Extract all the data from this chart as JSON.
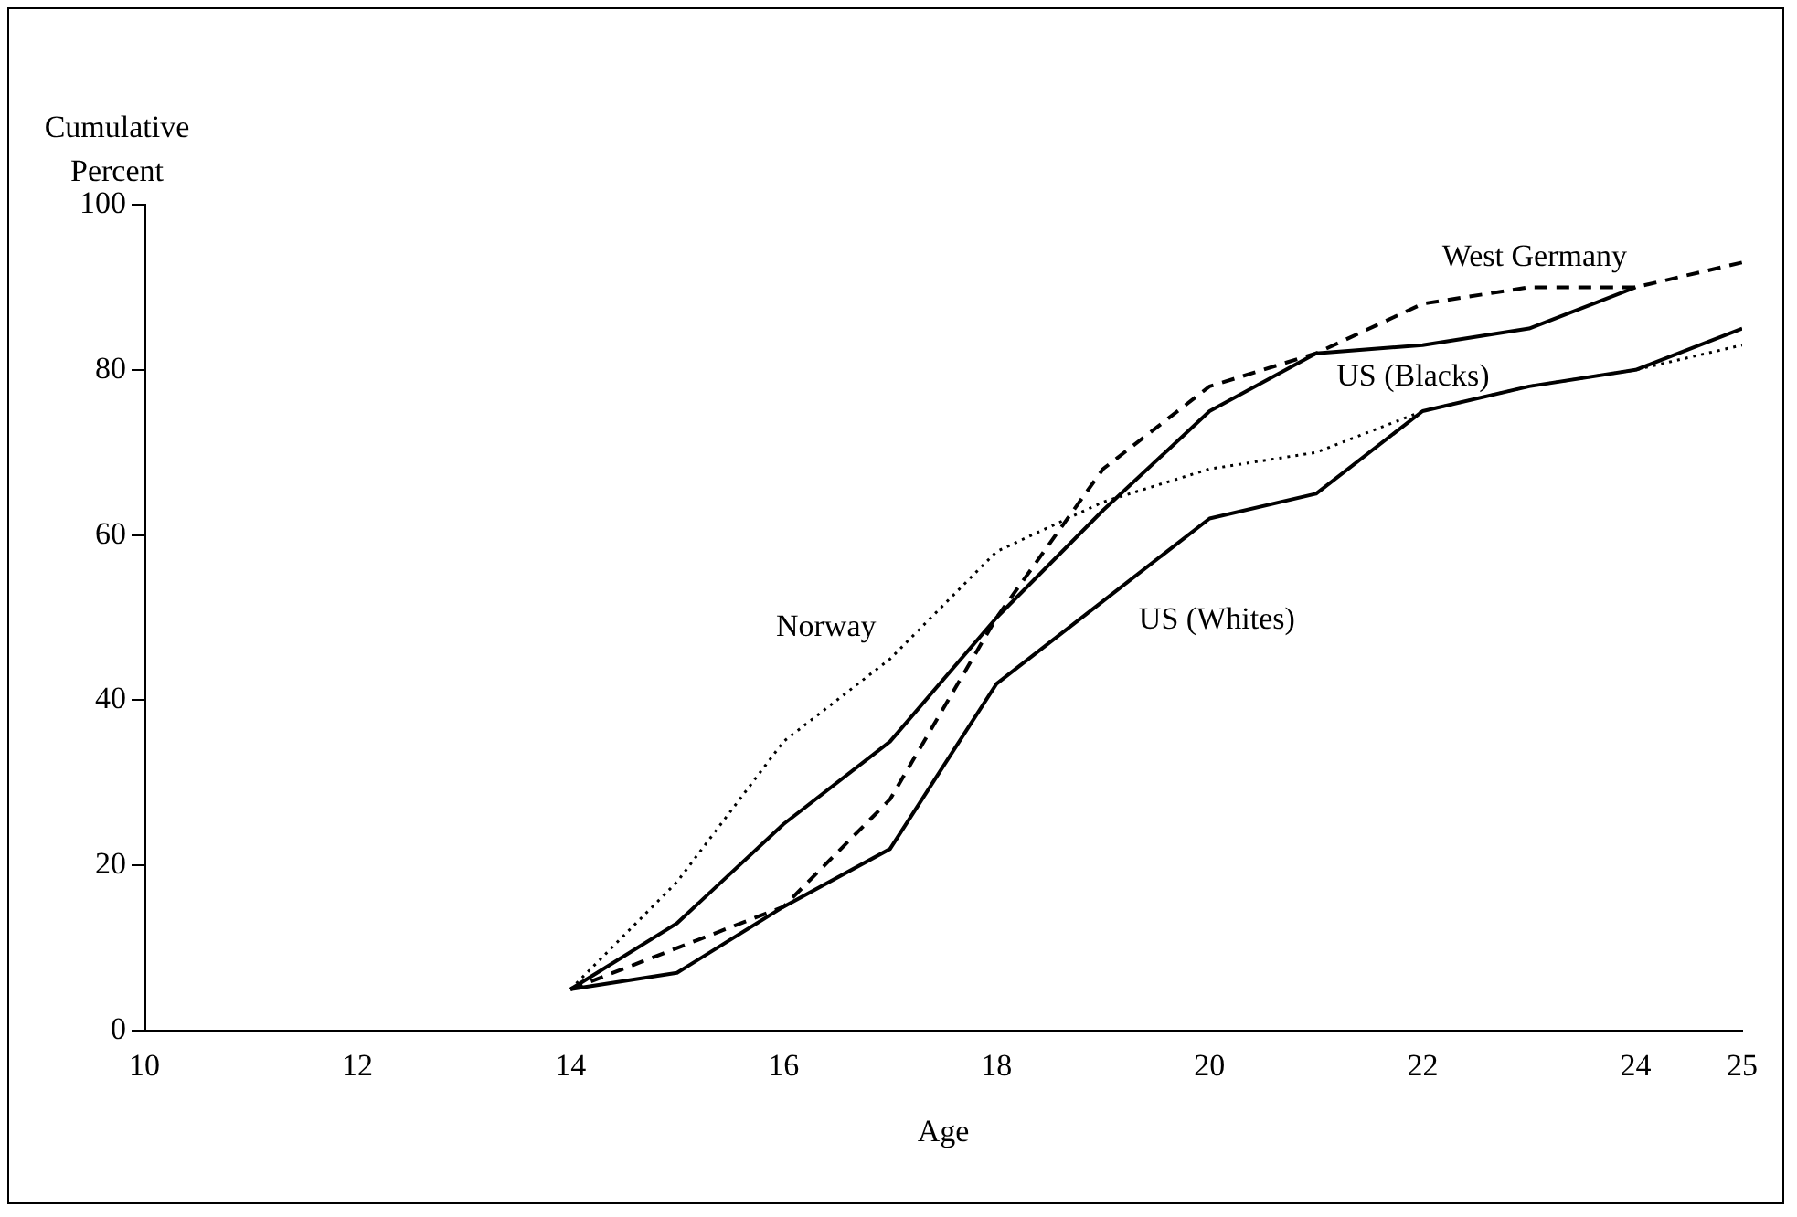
{
  "chart_data": {
    "type": "line",
    "xlabel": "Age",
    "ylabel": "Cumulative Percent",
    "x": [
      14,
      15,
      16,
      17,
      18,
      19,
      20,
      21,
      22,
      23,
      24,
      25
    ],
    "xlim": [
      10,
      25
    ],
    "xticks": [
      10,
      12,
      14,
      16,
      18,
      20,
      22,
      24,
      25
    ],
    "ylim": [
      0,
      100
    ],
    "yticks": [
      0,
      20,
      40,
      60,
      80,
      100
    ],
    "grid": false,
    "legend": false,
    "marker": "none",
    "series": [
      {
        "name": "US (Whites)",
        "color": "#000000",
        "line_style": "solid",
        "values": [
          5,
          7,
          15,
          22,
          42,
          52,
          62,
          65,
          75,
          78,
          80,
          85
        ]
      },
      {
        "name": "US (Blacks)",
        "color": "#000000",
        "line_style": "solid",
        "values": [
          5,
          13,
          25,
          35,
          50,
          63,
          75,
          82,
          83,
          85,
          90,
          null
        ]
      },
      {
        "name": "West Germany",
        "color": "#000000",
        "line_style": "dashed",
        "values": [
          5,
          10,
          15,
          28,
          50,
          68,
          78,
          82,
          88,
          90,
          90,
          93
        ]
      },
      {
        "name": "Norway",
        "color": "#000000",
        "line_style": "dotted",
        "values": [
          5,
          18,
          35,
          45,
          58,
          64,
          68,
          70,
          75,
          78,
          80,
          83
        ]
      }
    ]
  }
}
